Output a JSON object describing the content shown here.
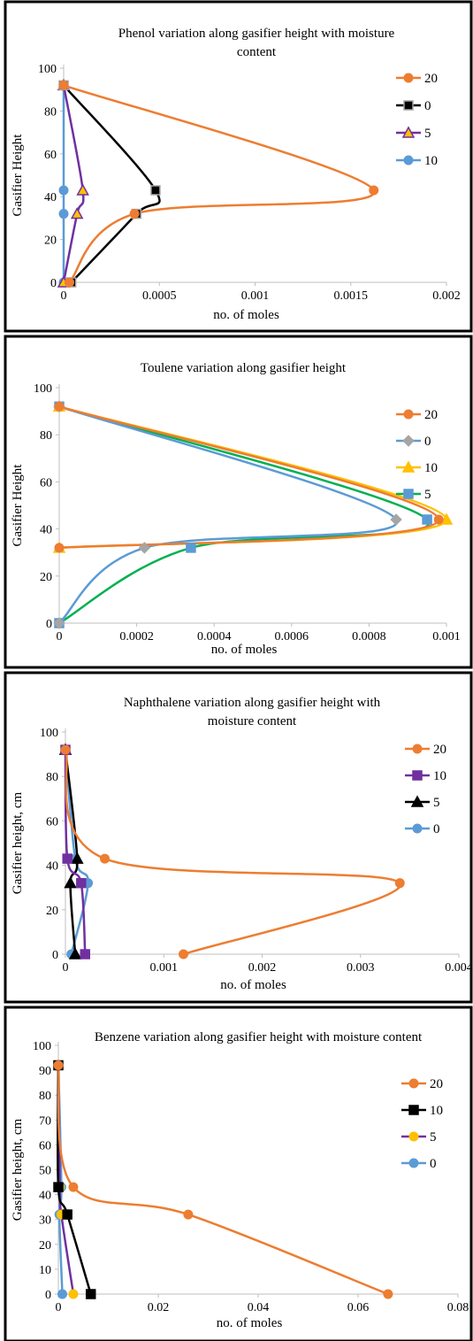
{
  "chart_data": [
    {
      "type": "line",
      "title_lines": [
        "Phenol variation along gasifier height with moisture",
        "content"
      ],
      "xlabel": "no. of moles",
      "ylabel": "Gasifier Height",
      "xlim": [
        0,
        0.002
      ],
      "ylim": [
        0,
        100
      ],
      "xticks": [
        0,
        0.0005,
        0.001,
        0.0015,
        0.002
      ],
      "xtick_labels": [
        "0",
        "0.0005",
        "0.001",
        "0.0015",
        "0.002"
      ],
      "yticks": [
        0,
        20,
        40,
        60,
        80,
        100
      ],
      "ytick_labels": [
        "0",
        "20",
        "40",
        "60",
        "80",
        "100"
      ],
      "legend_position": "right",
      "series": [
        {
          "name": "20",
          "color": "#ED7D31",
          "marker": "circle",
          "marker_fill": "#ED7D31",
          "points": [
            [
              3e-05,
              0
            ],
            [
              0.00037,
              32
            ],
            [
              0.00162,
              43
            ],
            [
              0.0,
              92
            ]
          ]
        },
        {
          "name": "0",
          "color": "#000000",
          "marker": "square",
          "marker_fill": "#000000",
          "marker_stroke": "#A5A5A5",
          "points": [
            [
              4e-05,
              0
            ],
            [
              0.00038,
              32
            ],
            [
              0.00048,
              43
            ],
            [
              0.0,
              92
            ]
          ]
        },
        {
          "name": "5",
          "color": "#7030A0",
          "marker": "triangle",
          "marker_fill": "#FFC000",
          "marker_stroke": "#7030A0",
          "points": [
            [
              0.0,
              0
            ],
            [
              7e-05,
              32
            ],
            [
              0.0001,
              43
            ],
            [
              0.0,
              92
            ]
          ]
        },
        {
          "name": "10",
          "color": "#5B9BD5",
          "marker": "circle",
          "marker_fill": "#5B9BD5",
          "points": [
            [
              0.0,
              0
            ],
            [
              0.0,
              32
            ],
            [
              0.0,
              43
            ],
            [
              0.0,
              92
            ]
          ]
        }
      ]
    },
    {
      "type": "line",
      "title_lines": [
        "Toulene variation along gasifier height"
      ],
      "xlabel": "no. of moles",
      "ylabel": "Gasifier Height",
      "xlim": [
        0,
        0.001
      ],
      "ylim": [
        0,
        100
      ],
      "xticks": [
        0,
        0.0002,
        0.0004,
        0.0006,
        0.0008,
        0.001
      ],
      "xtick_labels": [
        "0",
        "0.0002",
        "0.0004",
        "0.0006",
        "0.0008",
        "0.001"
      ],
      "yticks": [
        0,
        20,
        40,
        60,
        80,
        100
      ],
      "ytick_labels": [
        "0",
        "20",
        "40",
        "60",
        "80",
        "100"
      ],
      "legend_position": "top-right",
      "series": [
        {
          "name": "20",
          "color": "#ED7D31",
          "marker": "circle",
          "marker_fill": "#ED7D31",
          "points": [
            [
              0.0,
              32
            ],
            [
              0.00098,
              44
            ],
            [
              0.0,
              92
            ]
          ]
        },
        {
          "name": "0",
          "color": "#5B9BD5",
          "marker": "diamond",
          "marker_fill": "#A5A5A5",
          "points": [
            [
              0.0,
              0
            ],
            [
              0.00022,
              32
            ],
            [
              0.00087,
              44
            ],
            [
              0.0,
              92
            ]
          ]
        },
        {
          "name": "10",
          "color": "#FFC000",
          "marker": "triangle",
          "marker_fill": "#FFC000",
          "points": [
            [
              0.0,
              32
            ],
            [
              0.001,
              44
            ],
            [
              0.0,
              92
            ]
          ]
        },
        {
          "name": "5",
          "color": "#00B050",
          "marker": "square",
          "marker_fill": "#5B9BD5",
          "points": [
            [
              0.0,
              0
            ],
            [
              0.00034,
              32
            ],
            [
              0.00095,
              44
            ],
            [
              0.0,
              92
            ]
          ]
        }
      ]
    },
    {
      "type": "line",
      "title_lines": [
        "Naphthalene variation along gasifier height with",
        "moisture content"
      ],
      "xlabel": "no. of moles",
      "ylabel": "Gasifier height, cm",
      "xlim": [
        0,
        0.004
      ],
      "ylim": [
        0,
        100
      ],
      "xticks": [
        0,
        0.001,
        0.002,
        0.003,
        0.004
      ],
      "xtick_labels": [
        "0",
        "0.001",
        "0.002",
        "0.003",
        "0.004"
      ],
      "yticks": [
        0,
        20,
        40,
        60,
        80,
        100
      ],
      "ytick_labels": [
        "0",
        "20",
        "40",
        "60",
        "80",
        "100"
      ],
      "legend_position": "right",
      "series": [
        {
          "name": "20",
          "color": "#ED7D31",
          "marker": "circle",
          "marker_fill": "#ED7D31",
          "points": [
            [
              0.0012,
              0
            ],
            [
              0.0034,
              32
            ],
            [
              0.0004,
              43
            ],
            [
              0.0,
              92
            ]
          ]
        },
        {
          "name": "10",
          "color": "#7030A0",
          "marker": "square",
          "marker_fill": "#7030A0",
          "points": [
            [
              0.0002,
              0
            ],
            [
              0.00016,
              32
            ],
            [
              2e-05,
              43
            ],
            [
              0.0,
              92
            ]
          ]
        },
        {
          "name": "5",
          "color": "#000000",
          "marker": "triangle",
          "marker_fill": "#000000",
          "points": [
            [
              0.0001,
              0
            ],
            [
              5e-05,
              32
            ],
            [
              0.00012,
              43
            ],
            [
              0.0,
              92
            ]
          ]
        },
        {
          "name": "0",
          "color": "#5B9BD5",
          "marker": "circle",
          "marker_fill": "#5B9BD5",
          "points": [
            [
              6e-05,
              0
            ],
            [
              0.00023,
              32
            ],
            [
              0.0001,
              43
            ],
            [
              0.0,
              92
            ]
          ]
        }
      ]
    },
    {
      "type": "line",
      "title_lines": [
        "Benzene variation along gasifier height with moisture content"
      ],
      "xlabel": "no. of moles",
      "ylabel": "Gasifier height, cm",
      "xlim": [
        0,
        0.08
      ],
      "ylim": [
        0,
        100
      ],
      "xticks": [
        0,
        0.02,
        0.04,
        0.06,
        0.08
      ],
      "xtick_labels": [
        "0",
        "0.02",
        "0.04",
        "0.06",
        "0.08"
      ],
      "yticks": [
        0,
        10,
        20,
        30,
        40,
        50,
        60,
        70,
        80,
        90,
        100
      ],
      "ytick_labels": [
        "0",
        "10",
        "20",
        "30",
        "40",
        "50",
        "60",
        "70",
        "80",
        "90",
        "100"
      ],
      "legend_position": "right",
      "series": [
        {
          "name": "20",
          "color": "#ED7D31",
          "marker": "circle",
          "marker_fill": "#ED7D31",
          "points": [
            [
              0.066,
              0
            ],
            [
              0.026,
              32
            ],
            [
              0.003,
              43
            ],
            [
              0.0,
              92
            ]
          ]
        },
        {
          "name": "10",
          "color": "#000000",
          "marker": "square",
          "marker_fill": "#000000",
          "points": [
            [
              0.0065,
              0
            ],
            [
              0.0018,
              32
            ],
            [
              0.0,
              43
            ],
            [
              0.0,
              92
            ]
          ]
        },
        {
          "name": "5",
          "color": "#7030A0",
          "marker": "circle",
          "marker_fill": "#FFC000",
          "points": [
            [
              0.003,
              0
            ],
            [
              0.0006,
              32
            ],
            [
              0.0003,
              43
            ],
            [
              0.0,
              92
            ]
          ]
        },
        {
          "name": "0",
          "color": "#5B9BD5",
          "marker": "circle",
          "marker_fill": "#5B9BD5",
          "points": [
            [
              0.0008,
              0
            ],
            [
              0.0002,
              32
            ],
            [
              0.0006,
              43
            ],
            [
              0.0,
              92
            ]
          ]
        }
      ]
    }
  ]
}
